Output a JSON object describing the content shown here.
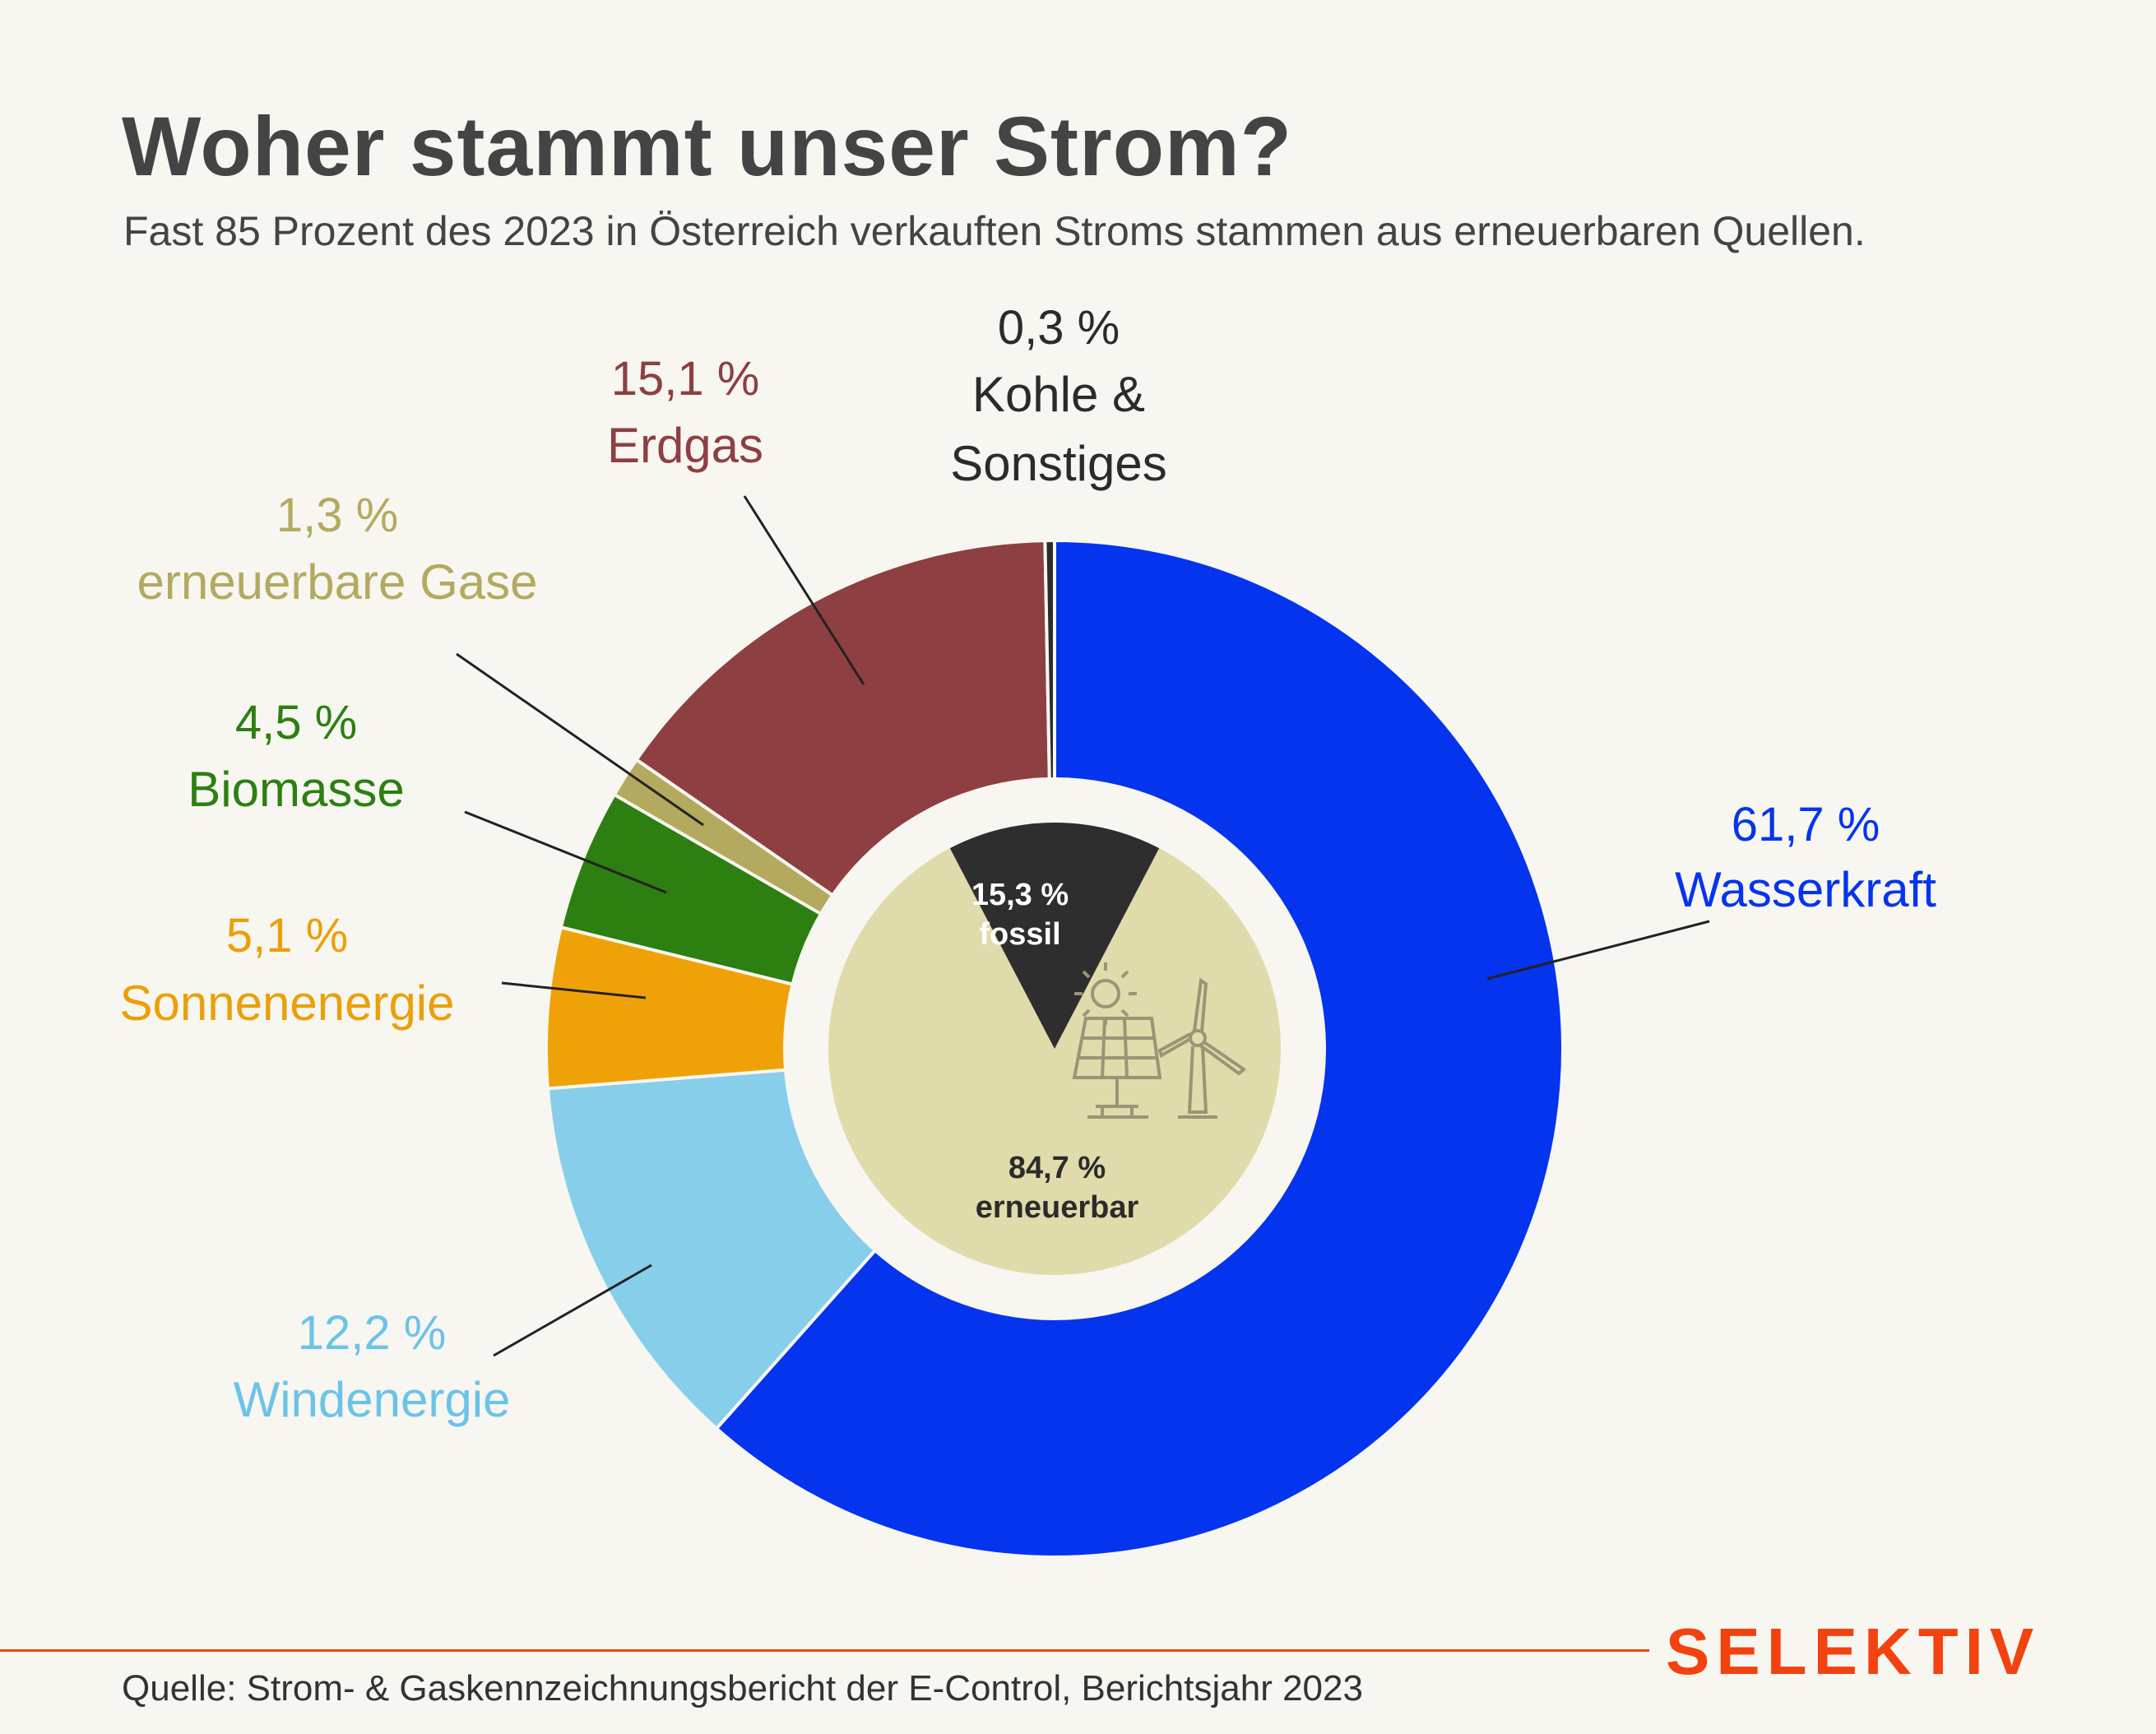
{
  "header": {
    "title": "Woher stammt unser Strom?",
    "subtitle": "Fast 85 Prozent des 2023 in Österreich verkauften Stroms stammen aus erneuerbaren Quellen."
  },
  "chart_data": {
    "type": "pie",
    "title": "Woher stammt unser Strom?",
    "unit": "%",
    "slices": [
      {
        "label": "Wasserkraft",
        "value": 61.7,
        "value_text": "61,7 %",
        "color": "#0534ee",
        "label_color": "#0534ee"
      },
      {
        "label": "Windenergie",
        "value": 12.2,
        "value_text": "12,2 %",
        "color": "#87ceea",
        "label_color": "#6cc3e8"
      },
      {
        "label": "Sonnenenergie",
        "value": 5.1,
        "value_text": "5,1 %",
        "color": "#efa208",
        "label_color": "#eaa00a"
      },
      {
        "label": "Biomasse",
        "value": 4.5,
        "value_text": "4,5 %",
        "color": "#2c7f10",
        "label_color": "#2c7f10"
      },
      {
        "label": "erneuerbare Gase",
        "value": 1.3,
        "value_text": "1,3 %",
        "color": "#b3aa60",
        "label_color": "#b3aa60"
      },
      {
        "label": "Erdgas",
        "value": 15.1,
        "value_text": "15,1 %",
        "color": "#8e3f42",
        "label_color": "#8e3f42"
      },
      {
        "label": "Kohle & Sonstiges",
        "label_lines": [
          "Kohle &",
          "Sonstiges"
        ],
        "value": 0.3,
        "value_text": "0,3 %",
        "color": "#2b2b2b",
        "label_color": "#2b2b2b"
      }
    ],
    "inner_pie": [
      {
        "label": "fossil",
        "value": 15.3,
        "value_text": "15,3 %",
        "color": "#2e2e2e"
      },
      {
        "label": "erneuerbar",
        "value": 84.7,
        "value_text": "84,7 %",
        "color": "#e0dbaa",
        "icons": [
          "sun-icon",
          "solar-panel-icon",
          "wind-turbine-icon"
        ]
      }
    ]
  },
  "footer": {
    "source": "Quelle: Strom- & Gaskennzeichnungsbericht der E-Control, Berichtsjahr 2023",
    "brand": "SELEKTIV",
    "brand_color": "#f2420f"
  }
}
